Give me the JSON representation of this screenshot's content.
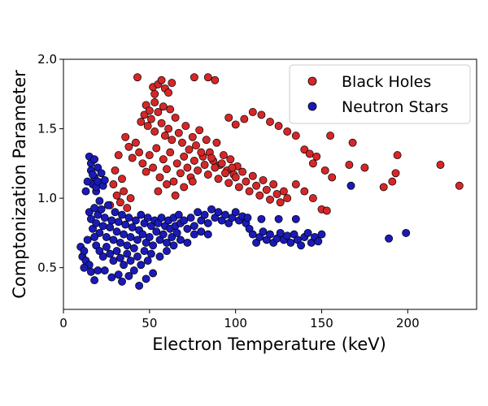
{
  "chart_data": {
    "type": "scatter",
    "title": "",
    "xlabel": "Electron Temperature (keV)",
    "ylabel": "Comptonization Parameter",
    "xlim": [
      0,
      240
    ],
    "ylim": [
      0.2,
      2.0
    ],
    "xticks": [
      0,
      50,
      100,
      150,
      200
    ],
    "xtick_labels": [
      "0",
      "50",
      "100",
      "150",
      "200"
    ],
    "yticks": [
      0.5,
      1.0,
      1.5,
      2.0
    ],
    "ytick_labels": [
      "0.5",
      "1.0",
      "1.5",
      "2.0"
    ],
    "grid": false,
    "legend_position": "top-right",
    "series": [
      {
        "name": "Black Holes",
        "color": "#d62728",
        "points": [
          [
            43,
            1.87
          ],
          [
            52,
            1.8
          ],
          [
            53,
            1.75
          ],
          [
            55,
            1.82
          ],
          [
            57,
            1.85
          ],
          [
            59,
            1.79
          ],
          [
            61,
            1.76
          ],
          [
            63,
            1.83
          ],
          [
            76,
            1.87
          ],
          [
            84,
            1.87
          ],
          [
            88,
            1.85
          ],
          [
            45,
            1.55
          ],
          [
            47,
            1.6
          ],
          [
            49,
            1.52
          ],
          [
            51,
            1.57
          ],
          [
            53,
            1.48
          ],
          [
            55,
            1.62
          ],
          [
            57,
            1.54
          ],
          [
            59,
            1.45
          ],
          [
            61,
            1.5
          ],
          [
            63,
            1.42
          ],
          [
            65,
            1.58
          ],
          [
            67,
            1.47
          ],
          [
            69,
            1.4
          ],
          [
            71,
            1.52
          ],
          [
            73,
            1.35
          ],
          [
            75,
            1.44
          ],
          [
            77,
            1.38
          ],
          [
            79,
            1.49
          ],
          [
            81,
            1.3
          ],
          [
            83,
            1.42
          ],
          [
            85,
            1.33
          ],
          [
            87,
            1.27
          ],
          [
            89,
            1.4
          ],
          [
            91,
            1.24
          ],
          [
            93,
            1.31
          ],
          [
            95,
            1.2
          ],
          [
            97,
            1.28
          ],
          [
            99,
            1.17
          ],
          [
            101,
            1.23
          ],
          [
            38,
            1.37
          ],
          [
            40,
            1.29
          ],
          [
            42,
            1.4
          ],
          [
            44,
            1.33
          ],
          [
            46,
            1.25
          ],
          [
            48,
            1.19
          ],
          [
            50,
            1.31
          ],
          [
            52,
            1.22
          ],
          [
            54,
            1.36
          ],
          [
            56,
            1.15
          ],
          [
            58,
            1.28
          ],
          [
            60,
            1.21
          ],
          [
            62,
            1.33
          ],
          [
            64,
            1.12
          ],
          [
            66,
            1.25
          ],
          [
            68,
            1.18
          ],
          [
            70,
            1.3
          ],
          [
            72,
            1.22
          ],
          [
            74,
            1.15
          ],
          [
            76,
            1.27
          ],
          [
            78,
            1.2
          ],
          [
            80,
            1.33
          ],
          [
            82,
            1.24
          ],
          [
            84,
            1.17
          ],
          [
            86,
            1.29
          ],
          [
            88,
            1.22
          ],
          [
            90,
            1.14
          ],
          [
            92,
            1.25
          ],
          [
            94,
            1.18
          ],
          [
            96,
            1.11
          ],
          [
            98,
            1.22
          ],
          [
            100,
            1.15
          ],
          [
            102,
            1.08
          ],
          [
            104,
            1.19
          ],
          [
            106,
            1.12
          ],
          [
            108,
            1.05
          ],
          [
            110,
            1.16
          ],
          [
            112,
            1.09
          ],
          [
            114,
            1.02
          ],
          [
            116,
            1.13
          ],
          [
            118,
            1.06
          ],
          [
            120,
            0.99
          ],
          [
            122,
            1.1
          ],
          [
            124,
            1.03
          ],
          [
            126,
            0.97
          ],
          [
            128,
            1.05
          ],
          [
            130,
            1.0
          ],
          [
            31,
            1.02
          ],
          [
            33,
            0.97
          ],
          [
            35,
            1.05
          ],
          [
            37,
            0.93
          ],
          [
            39,
            1.0
          ],
          [
            30,
            1.2
          ],
          [
            32,
            1.31
          ],
          [
            34,
            1.14
          ],
          [
            27,
            0.95
          ],
          [
            29,
            1.1
          ],
          [
            36,
            1.44
          ],
          [
            55,
            1.05
          ],
          [
            60,
            1.1
          ],
          [
            65,
            1.02
          ],
          [
            70,
            1.08
          ],
          [
            75,
            1.12
          ],
          [
            48,
            1.67
          ],
          [
            50,
            1.63
          ],
          [
            53,
            1.69
          ],
          [
            58,
            1.66
          ],
          [
            62,
            1.64
          ],
          [
            96,
            1.58
          ],
          [
            100,
            1.53
          ],
          [
            105,
            1.57
          ],
          [
            110,
            1.62
          ],
          [
            115,
            1.6
          ],
          [
            120,
            1.55
          ],
          [
            125,
            1.52
          ],
          [
            130,
            1.48
          ],
          [
            135,
            1.45
          ],
          [
            140,
            1.35
          ],
          [
            143,
            1.32
          ],
          [
            145,
            1.25
          ],
          [
            147,
            1.3
          ],
          [
            150,
            0.92
          ],
          [
            153,
            0.91
          ],
          [
            155,
            1.45
          ],
          [
            152,
            1.2
          ],
          [
            156,
            1.15
          ],
          [
            145,
            1.0
          ],
          [
            140,
            1.05
          ],
          [
            135,
            1.1
          ],
          [
            168,
            1.4
          ],
          [
            166,
            1.24
          ],
          [
            175,
            1.22
          ],
          [
            186,
            1.08
          ],
          [
            191,
            1.12
          ],
          [
            193,
            1.18
          ],
          [
            194,
            1.31
          ],
          [
            219,
            1.24
          ],
          [
            230,
            1.09
          ]
        ]
      },
      {
        "name": "Neutron Stars",
        "color": "#1a1ab8",
        "points": [
          [
            10,
            0.65
          ],
          [
            11,
            0.58
          ],
          [
            12,
            0.62
          ],
          [
            13,
            0.55
          ],
          [
            14,
            0.7
          ],
          [
            15,
            0.52
          ],
          [
            16,
            1.2
          ],
          [
            17,
            1.1
          ],
          [
            18,
            1.15
          ],
          [
            19,
            1.05
          ],
          [
            20,
            1.22
          ],
          [
            21,
            0.98
          ],
          [
            15,
            1.3
          ],
          [
            16,
            1.25
          ],
          [
            17,
            1.17
          ],
          [
            18,
            1.28
          ],
          [
            19,
            1.08
          ],
          [
            20,
            1.12
          ],
          [
            22,
            1.18
          ],
          [
            23,
            1.09
          ],
          [
            24,
            1.13
          ],
          [
            14,
            1.12
          ],
          [
            13,
            1.05
          ],
          [
            15,
            0.9
          ],
          [
            16,
            0.85
          ],
          [
            17,
            0.78
          ],
          [
            18,
            0.93
          ],
          [
            19,
            0.82
          ],
          [
            20,
            0.88
          ],
          [
            21,
            0.75
          ],
          [
            22,
            0.92
          ],
          [
            23,
            0.8
          ],
          [
            24,
            0.86
          ],
          [
            25,
            0.72
          ],
          [
            26,
            0.95
          ],
          [
            27,
            0.79
          ],
          [
            28,
            0.84
          ],
          [
            29,
            0.7
          ],
          [
            30,
            0.9
          ],
          [
            31,
            0.76
          ],
          [
            32,
            0.83
          ],
          [
            33,
            0.68
          ],
          [
            34,
            0.88
          ],
          [
            35,
            0.74
          ],
          [
            36,
            0.81
          ],
          [
            37,
            0.66
          ],
          [
            38,
            0.86
          ],
          [
            39,
            0.72
          ],
          [
            40,
            0.79
          ],
          [
            41,
            0.64
          ],
          [
            42,
            0.84
          ],
          [
            43,
            0.7
          ],
          [
            44,
            0.77
          ],
          [
            45,
            0.88
          ],
          [
            46,
            0.74
          ],
          [
            47,
            0.82
          ],
          [
            48,
            0.68
          ],
          [
            49,
            0.86
          ],
          [
            50,
            0.72
          ],
          [
            51,
            0.8
          ],
          [
            52,
            0.66
          ],
          [
            53,
            0.84
          ],
          [
            54,
            0.76
          ],
          [
            55,
            0.82
          ],
          [
            56,
            0.7
          ],
          [
            57,
            0.86
          ],
          [
            58,
            0.74
          ],
          [
            59,
            0.8
          ],
          [
            60,
            0.68
          ],
          [
            61,
            0.84
          ],
          [
            62,
            0.78
          ],
          [
            63,
            0.72
          ],
          [
            64,
            0.86
          ],
          [
            65,
            0.8
          ],
          [
            66,
            0.75
          ],
          [
            67,
            0.88
          ],
          [
            68,
            0.82
          ],
          [
            70,
            0.84
          ],
          [
            72,
            0.78
          ],
          [
            74,
            0.86
          ],
          [
            76,
            0.8
          ],
          [
            78,
            0.9
          ],
          [
            80,
            0.84
          ],
          [
            82,
            0.88
          ],
          [
            84,
            0.82
          ],
          [
            86,
            0.92
          ],
          [
            88,
            0.86
          ],
          [
            90,
            0.9
          ],
          [
            92,
            0.84
          ],
          [
            94,
            0.88
          ],
          [
            96,
            0.82
          ],
          [
            98,
            0.86
          ],
          [
            100,
            0.9
          ],
          [
            102,
            0.84
          ],
          [
            104,
            0.87
          ],
          [
            18,
            0.72
          ],
          [
            19,
            0.66
          ],
          [
            21,
            0.62
          ],
          [
            23,
            0.58
          ],
          [
            25,
            0.65
          ],
          [
            27,
            0.6
          ],
          [
            29,
            0.55
          ],
          [
            31,
            0.62
          ],
          [
            33,
            0.57
          ],
          [
            35,
            0.52
          ],
          [
            37,
            0.6
          ],
          [
            39,
            0.55
          ],
          [
            41,
            0.48
          ],
          [
            43,
            0.58
          ],
          [
            45,
            0.52
          ],
          [
            47,
            0.62
          ],
          [
            49,
            0.55
          ],
          [
            51,
            0.6
          ],
          [
            12,
            0.5
          ],
          [
            16,
            0.47
          ],
          [
            18,
            0.41
          ],
          [
            20,
            0.48
          ],
          [
            24,
            0.48
          ],
          [
            28,
            0.43
          ],
          [
            32,
            0.45
          ],
          [
            34,
            0.4
          ],
          [
            38,
            0.44
          ],
          [
            44,
            0.37
          ],
          [
            48,
            0.42
          ],
          [
            52,
            0.46
          ],
          [
            56,
            0.58
          ],
          [
            60,
            0.62
          ],
          [
            64,
            0.66
          ],
          [
            68,
            0.7
          ],
          [
            72,
            0.68
          ],
          [
            76,
            0.74
          ],
          [
            80,
            0.76
          ],
          [
            84,
            0.74
          ],
          [
            106,
            0.82
          ],
          [
            108,
            0.78
          ],
          [
            110,
            0.74
          ],
          [
            112,
            0.68
          ],
          [
            114,
            0.72
          ],
          [
            116,
            0.76
          ],
          [
            118,
            0.7
          ],
          [
            120,
            0.74
          ],
          [
            122,
            0.68
          ],
          [
            124,
            0.71
          ],
          [
            126,
            0.75
          ],
          [
            128,
            0.7
          ],
          [
            130,
            0.73
          ],
          [
            132,
            0.68
          ],
          [
            134,
            0.74
          ],
          [
            136,
            0.7
          ],
          [
            138,
            0.66
          ],
          [
            140,
            0.72
          ],
          [
            142,
            0.75
          ],
          [
            144,
            0.68
          ],
          [
            146,
            0.72
          ],
          [
            148,
            0.69
          ],
          [
            150,
            0.74
          ],
          [
            107,
            0.86
          ],
          [
            115,
            0.85
          ],
          [
            125,
            0.85
          ],
          [
            135,
            0.85
          ],
          [
            167,
            1.09
          ],
          [
            189,
            0.71
          ],
          [
            199,
            0.75
          ]
        ]
      }
    ]
  }
}
